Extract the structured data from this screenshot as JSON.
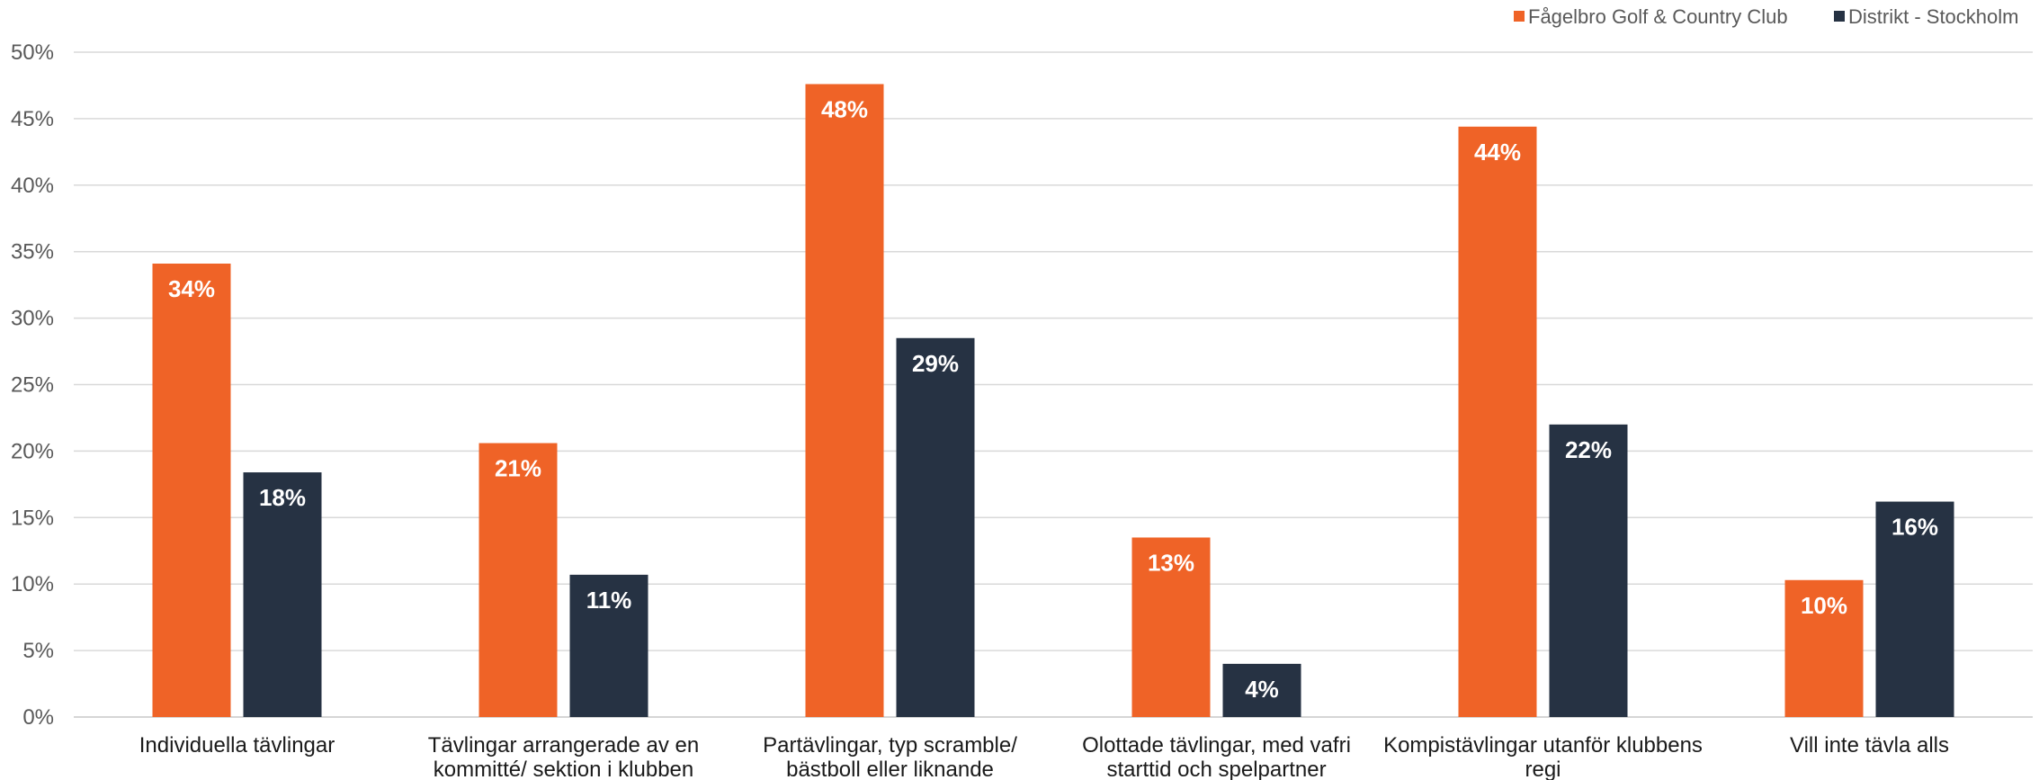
{
  "chart_data": {
    "type": "bar",
    "title": "",
    "xlabel": "",
    "ylabel": "",
    "ylim": [
      0,
      50
    ],
    "y_ticks": [
      "0%",
      "5%",
      "10%",
      "15%",
      "20%",
      "25%",
      "30%",
      "35%",
      "40%",
      "45%",
      "50%"
    ],
    "grid": true,
    "legend_position": "top-right",
    "categories": [
      [
        "Individuella tävlingar"
      ],
      [
        "Tävlingar arrangerade av en",
        "kommitté/ sektion i klubben"
      ],
      [
        "Partävlingar, typ scramble/",
        "bästboll eller liknande"
      ],
      [
        "Olottade tävlingar, med vafri",
        "starttid och spelpartner"
      ],
      [
        "Kompistävlingar utanför klubbens",
        "regi"
      ],
      [
        "Vill inte tävla alls"
      ]
    ],
    "series": [
      {
        "name": "Fågelbro Golf & Country Club",
        "color": "#EF6327",
        "values": [
          34.1,
          20.6,
          47.6,
          13.5,
          44.4,
          10.3
        ],
        "labels": [
          "34%",
          "21%",
          "48%",
          "13%",
          "44%",
          "10%"
        ]
      },
      {
        "name": "Distrikt - Stockholm",
        "color": "#263243",
        "values": [
          18.4,
          10.7,
          28.5,
          4.0,
          22.0,
          16.2
        ],
        "labels": [
          "18%",
          "11%",
          "29%",
          "4%",
          "22%",
          "16%"
        ]
      }
    ]
  }
}
